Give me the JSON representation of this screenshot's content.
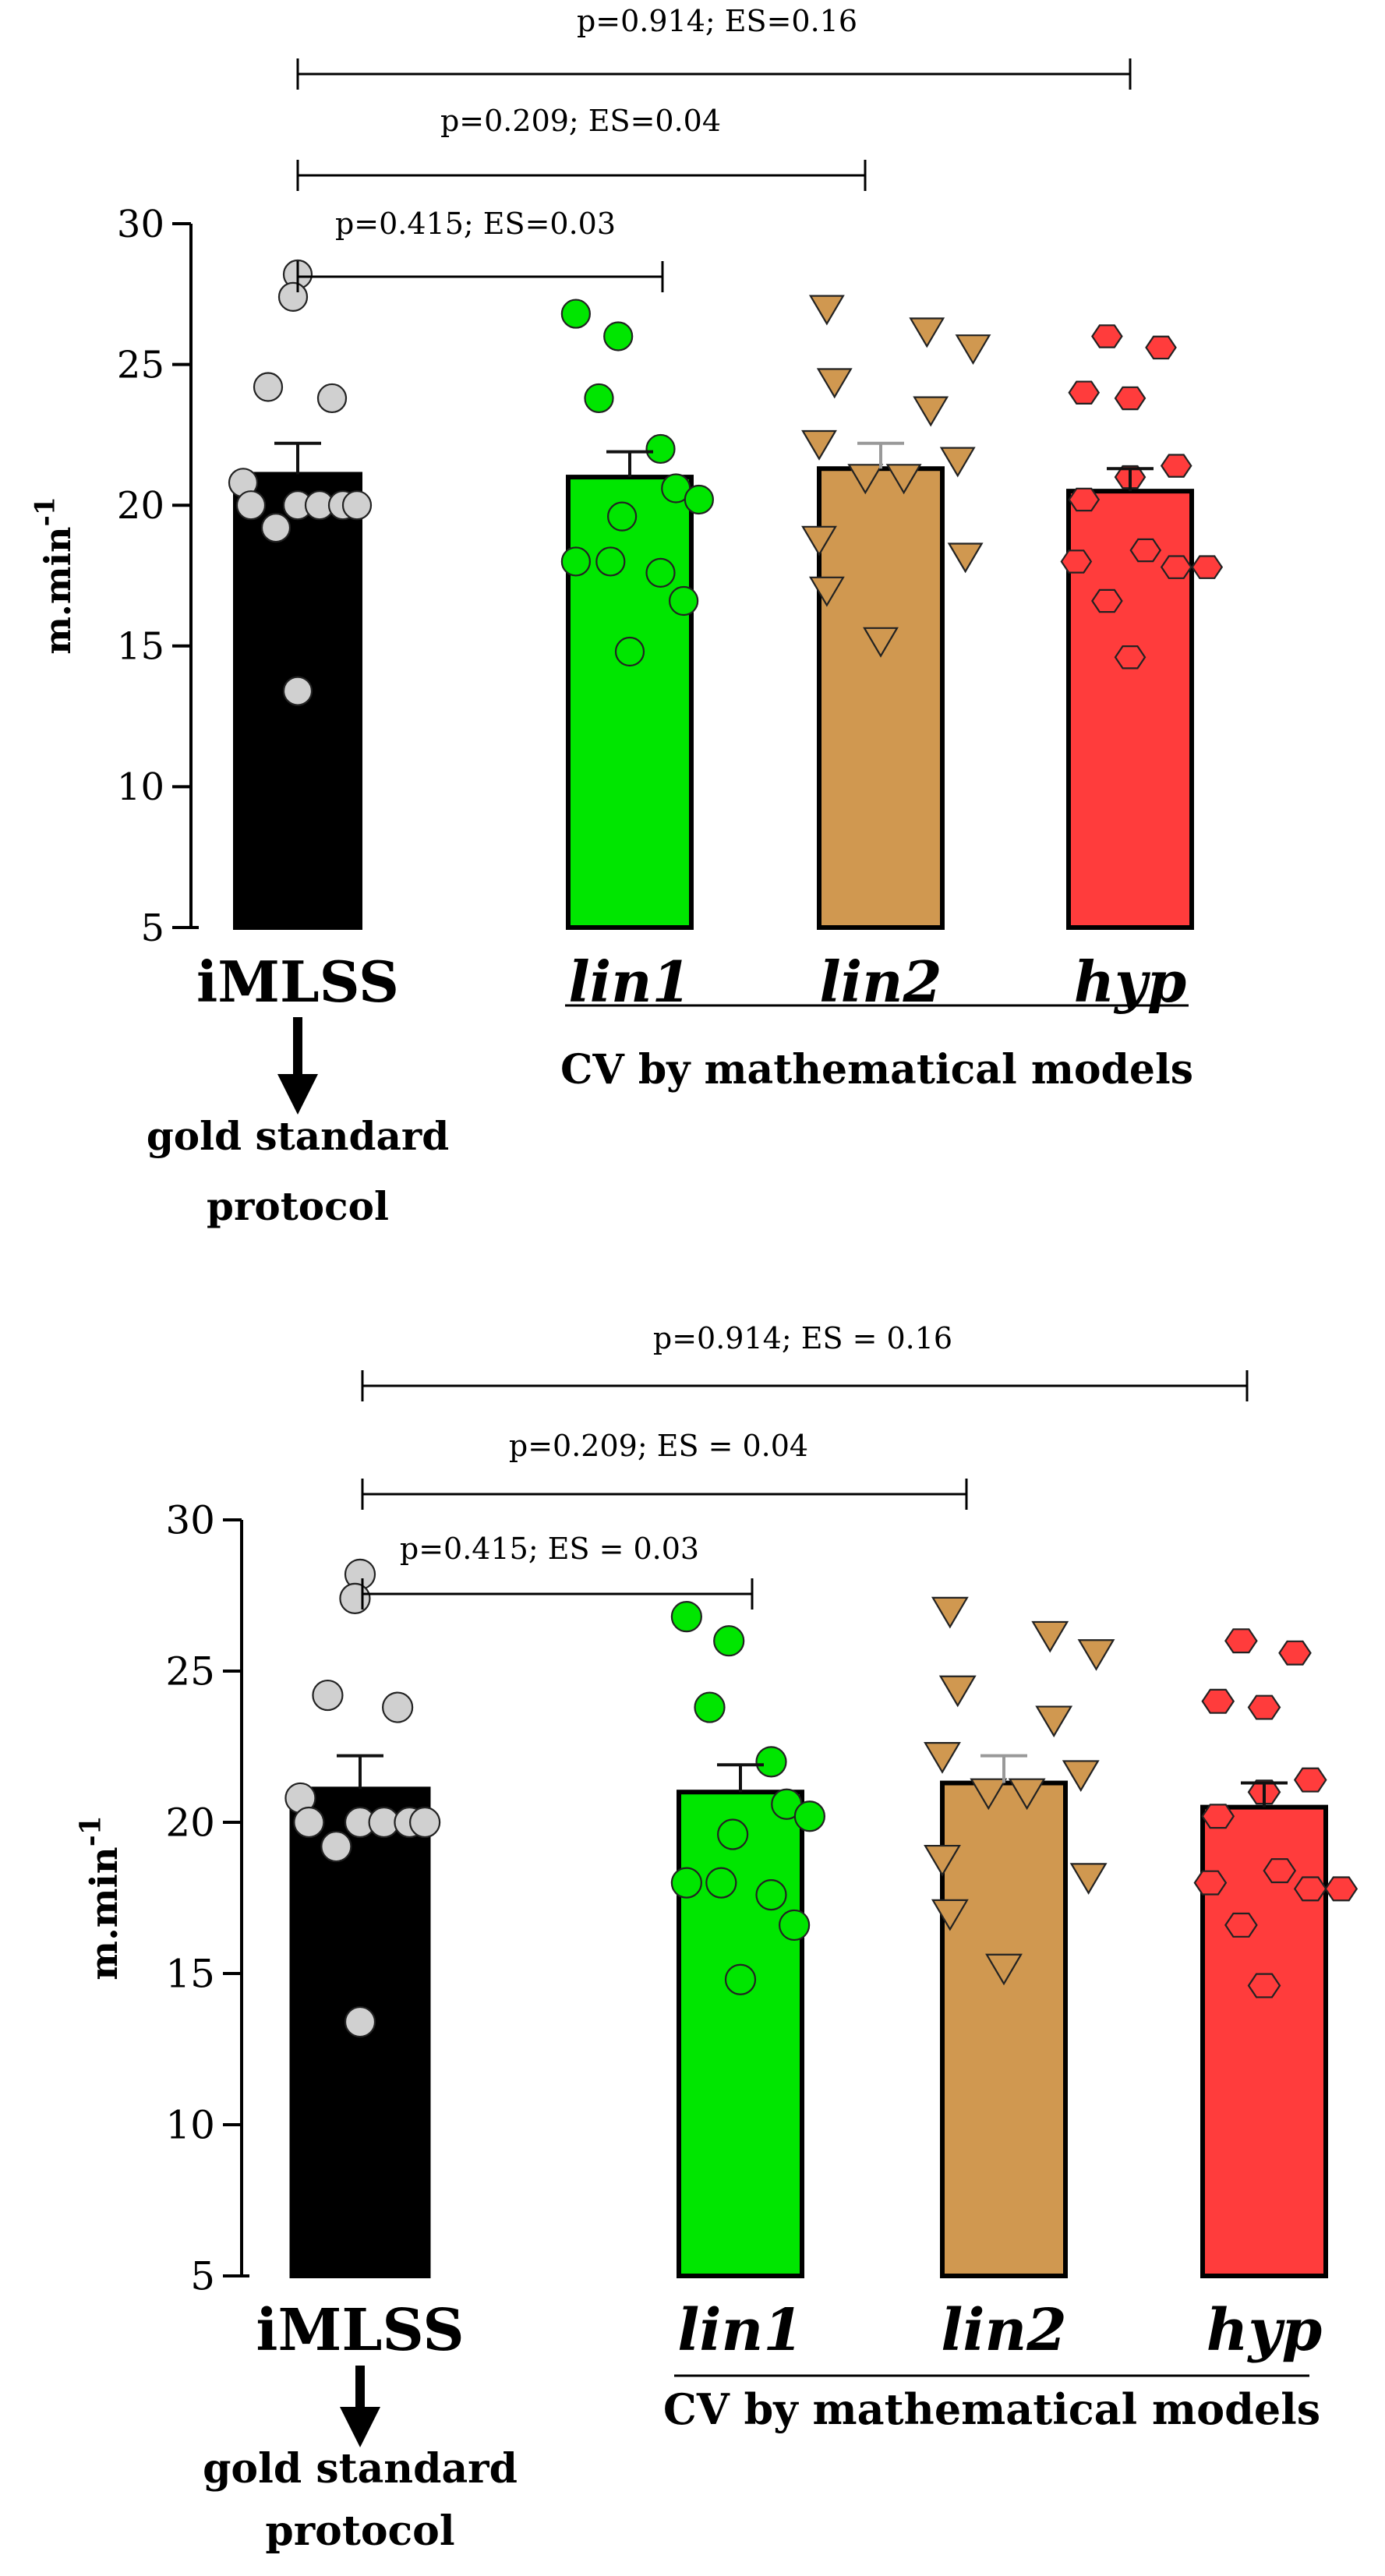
{
  "chart_data": [
    {
      "type": "bar",
      "ylabel": "m.min",
      "ylabel_sup": "-1",
      "ylim": [
        5,
        30
      ],
      "yticks": [
        5,
        10,
        15,
        20,
        25,
        30
      ],
      "ytick_labels": [
        "5",
        "10",
        "15",
        "20",
        "25",
        "30"
      ],
      "grid": false,
      "categories": [
        "iMLSS",
        "lin1",
        "lin2",
        "hyp"
      ],
      "category_styles": [
        "plain",
        "italic",
        "italic",
        "italic"
      ],
      "values": [
        21.1,
        21.0,
        21.3,
        20.5
      ],
      "sem": [
        1.1,
        0.9,
        0.9,
        0.8
      ],
      "bar_colors": [
        "#000000",
        "#00e600",
        "#d09850",
        "#ff3c3c"
      ],
      "points": [
        {
          "marker": "circle",
          "fill": "#d0d0d0",
          "values": [
            28.2,
            27.4,
            24.2,
            23.8,
            20.8,
            20.0,
            20.0,
            20.0,
            20.0,
            20.0,
            19.2,
            13.4
          ]
        },
        {
          "marker": "circle",
          "fill": "#00e600",
          "values": [
            26.8,
            26.0,
            23.8,
            22.0,
            20.6,
            20.2,
            19.6,
            18.0,
            18.0,
            17.6,
            16.6,
            14.8
          ]
        },
        {
          "marker": "triangle-down",
          "fill": "#d09850",
          "values": [
            27.0,
            26.2,
            25.6,
            24.4,
            23.4,
            22.2,
            21.6,
            21.0,
            21.0,
            18.8,
            18.2,
            17.0,
            15.2
          ]
        },
        {
          "marker": "hexagon",
          "fill": "#ff3c3c",
          "values": [
            26.0,
            25.6,
            24.0,
            23.8,
            21.4,
            21.0,
            20.2,
            18.4,
            18.0,
            17.8,
            17.8,
            16.6,
            14.6
          ]
        }
      ],
      "comparisons": [
        {
          "from": 0,
          "to": 3,
          "label": "p=0.914; ES=0.16"
        },
        {
          "from": 0,
          "to": 2,
          "label": "p=0.209; ES=0.04"
        },
        {
          "from": 0,
          "to": 1,
          "label": "p=0.415; ES=0.03"
        }
      ],
      "group_label": "CV by mathematical models",
      "reference_label_lines": [
        "gold standard",
        "protocol"
      ]
    },
    {
      "type": "bar",
      "ylabel": "m.min",
      "ylabel_sup": "-1",
      "ylim": [
        5,
        30
      ],
      "yticks": [
        5,
        10,
        15,
        20,
        25,
        30
      ],
      "ytick_labels": [
        "5",
        "10",
        "15",
        "20",
        "25",
        "30"
      ],
      "grid": false,
      "categories": [
        "iMLSS",
        "lin1",
        "lin2",
        "hyp"
      ],
      "category_styles": [
        "plain",
        "italic",
        "italic",
        "italic"
      ],
      "values": [
        21.1,
        21.0,
        21.3,
        20.5
      ],
      "sem": [
        1.1,
        0.9,
        0.9,
        0.8
      ],
      "bar_colors": [
        "#000000",
        "#00e600",
        "#d09850",
        "#ff3c3c"
      ],
      "points": [
        {
          "marker": "circle",
          "fill": "#d0d0d0",
          "values": [
            28.2,
            27.4,
            24.2,
            23.8,
            20.8,
            20.0,
            20.0,
            20.0,
            20.0,
            20.0,
            19.2,
            13.4
          ]
        },
        {
          "marker": "circle",
          "fill": "#00e600",
          "values": [
            26.8,
            26.0,
            23.8,
            22.0,
            20.6,
            20.2,
            19.6,
            18.0,
            18.0,
            17.6,
            16.6,
            14.8
          ]
        },
        {
          "marker": "triangle-down",
          "fill": "#d09850",
          "values": [
            27.0,
            26.2,
            25.6,
            24.4,
            23.4,
            22.2,
            21.6,
            21.0,
            21.0,
            18.8,
            18.2,
            17.0,
            15.2
          ]
        },
        {
          "marker": "hexagon",
          "fill": "#ff3c3c",
          "values": [
            26.0,
            25.6,
            24.0,
            23.8,
            21.4,
            21.0,
            20.2,
            18.4,
            18.0,
            17.8,
            17.8,
            16.6,
            14.6
          ]
        }
      ],
      "comparisons": [
        {
          "from": 0,
          "to": 3,
          "label": "p=0.914; ES = 0.16"
        },
        {
          "from": 0,
          "to": 2,
          "label": "p=0.209; ES = 0.04"
        },
        {
          "from": 0,
          "to": 1,
          "label": "p=0.415; ES = 0.03"
        }
      ],
      "group_label": "CV by mathematical models",
      "reference_label_lines": [
        "gold standard",
        "protocol"
      ]
    }
  ]
}
